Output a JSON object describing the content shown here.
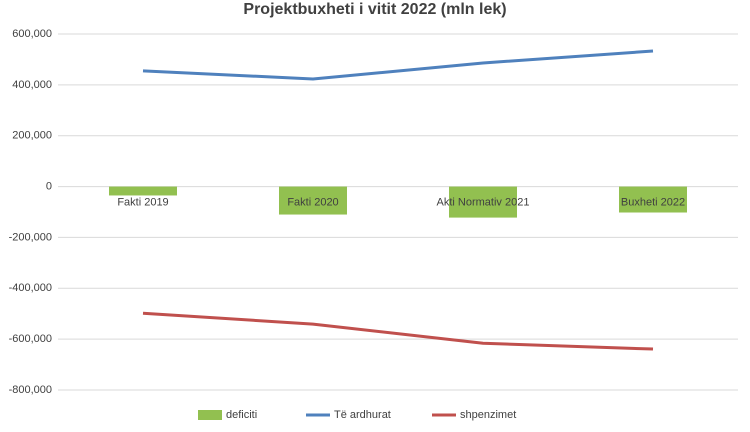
{
  "chart_data": {
    "type": "combo",
    "title": "Projektbuxheti i vitit 2022 (mln lek)",
    "categories": [
      "Fakti 2019",
      "Fakti 2020",
      "Akti Normativ 2021",
      "Buxheti 2022"
    ],
    "series": [
      {
        "name": "deficiti",
        "type": "bar",
        "color": "#92c050",
        "values": [
          -35000,
          -110000,
          -122000,
          -102000
        ]
      },
      {
        "name": "Të ardhurat",
        "type": "line",
        "color": "#4f81bd",
        "values": [
          455000,
          423000,
          486000,
          533000
        ]
      },
      {
        "name": "shpenzimet",
        "type": "line",
        "color": "#c0504d",
        "values": [
          -498000,
          -541000,
          -616000,
          -639000
        ]
      }
    ],
    "ylim": [
      -800000,
      600000
    ],
    "yticks": [
      {
        "value": -800000,
        "label": "-800,000"
      },
      {
        "value": -600000,
        "label": "-600,000"
      },
      {
        "value": -400000,
        "label": "-400,000"
      },
      {
        "value": -200000,
        "label": "-200,000"
      },
      0,
      {
        "value": 200000,
        "label": "200,000"
      },
      {
        "value": 400000,
        "label": "400,000"
      },
      {
        "value": 600000,
        "label": "600,000"
      }
    ],
    "grid": true,
    "legend": "bottom"
  }
}
